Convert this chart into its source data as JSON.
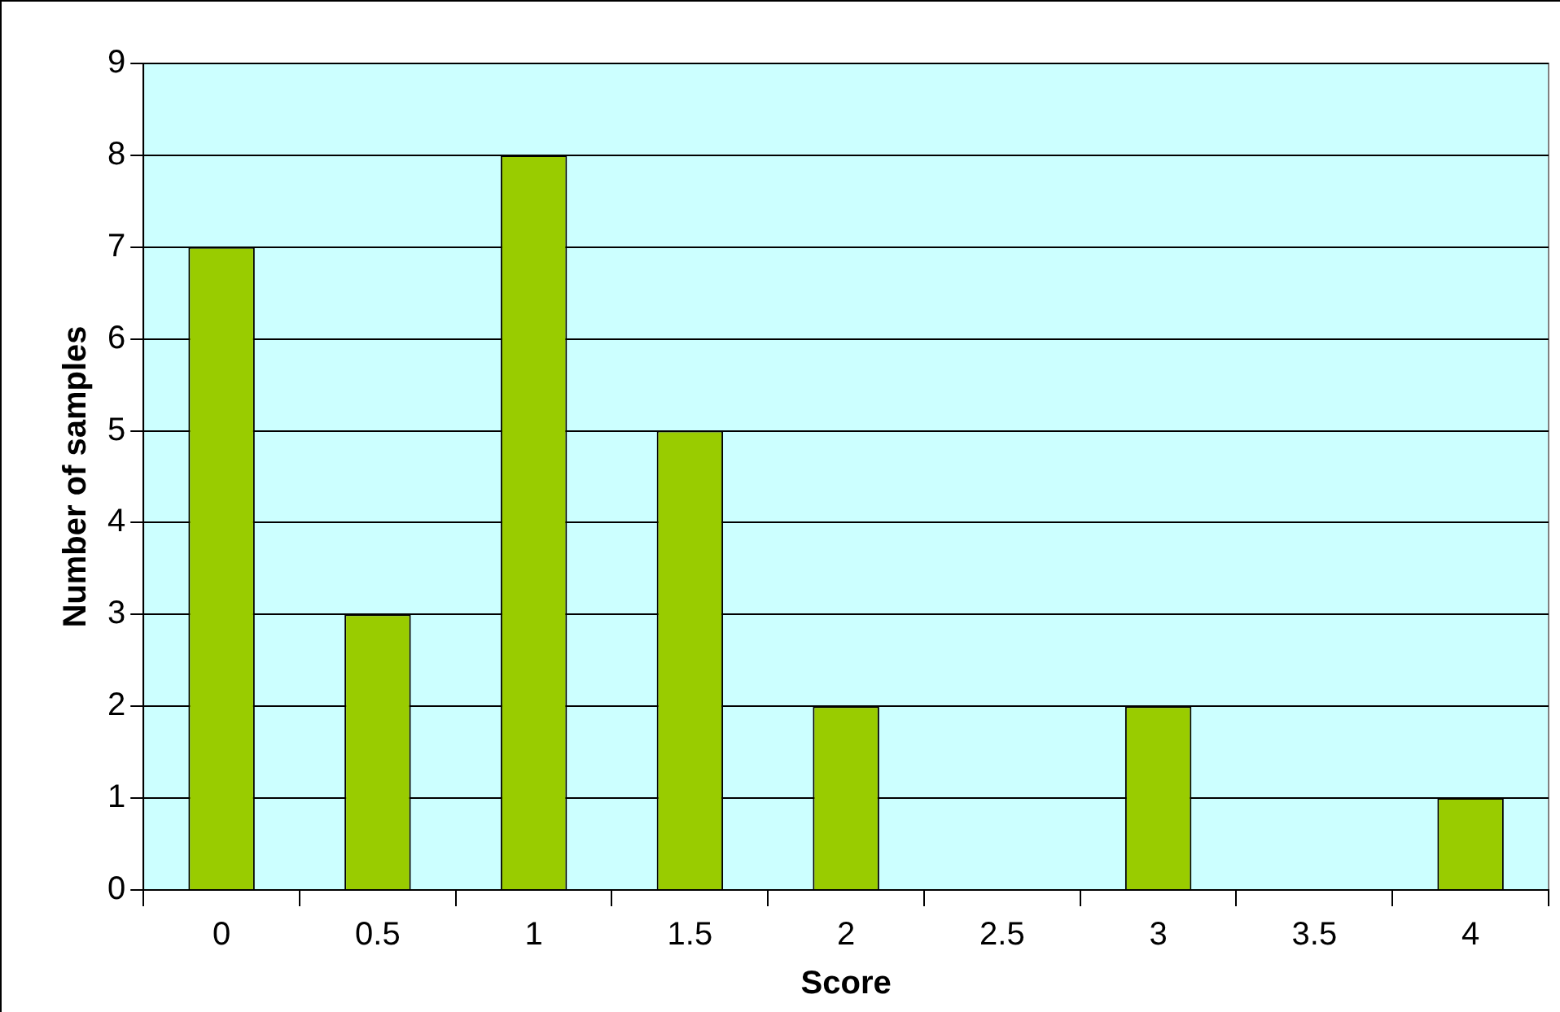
{
  "chart_data": {
    "type": "bar",
    "xlabel": "Score",
    "ylabel": "Number of samples",
    "categories": [
      "0",
      "0.5",
      "1",
      "1.5",
      "2",
      "2.5",
      "3",
      "3.5",
      "4"
    ],
    "values": [
      7,
      3,
      8,
      5,
      2,
      0,
      2,
      0,
      1
    ],
    "color": "#99cc00",
    "ylim": [
      0,
      9
    ],
    "yticks": [
      0,
      1,
      2,
      3,
      4,
      5,
      6,
      7,
      8,
      9
    ],
    "grid": "y",
    "legend": false
  }
}
